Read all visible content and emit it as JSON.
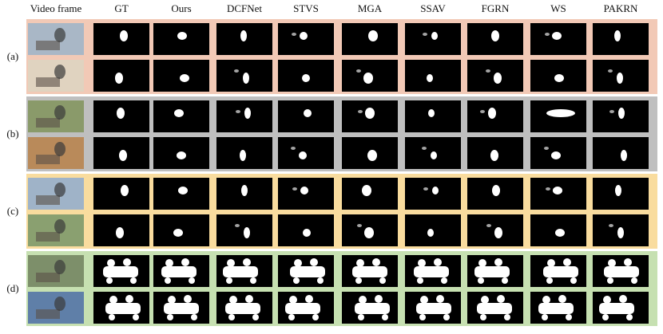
{
  "columns": [
    "Video frame",
    "GT",
    "Ours",
    "DCFNet",
    "STVS",
    "MGA",
    "SSAV",
    "FGRN",
    "WS",
    "PAKRN"
  ],
  "groups": [
    {
      "label": "(a)"
    },
    {
      "label": "(b)"
    },
    {
      "label": "(c)"
    },
    {
      "label": "(d)"
    }
  ]
}
